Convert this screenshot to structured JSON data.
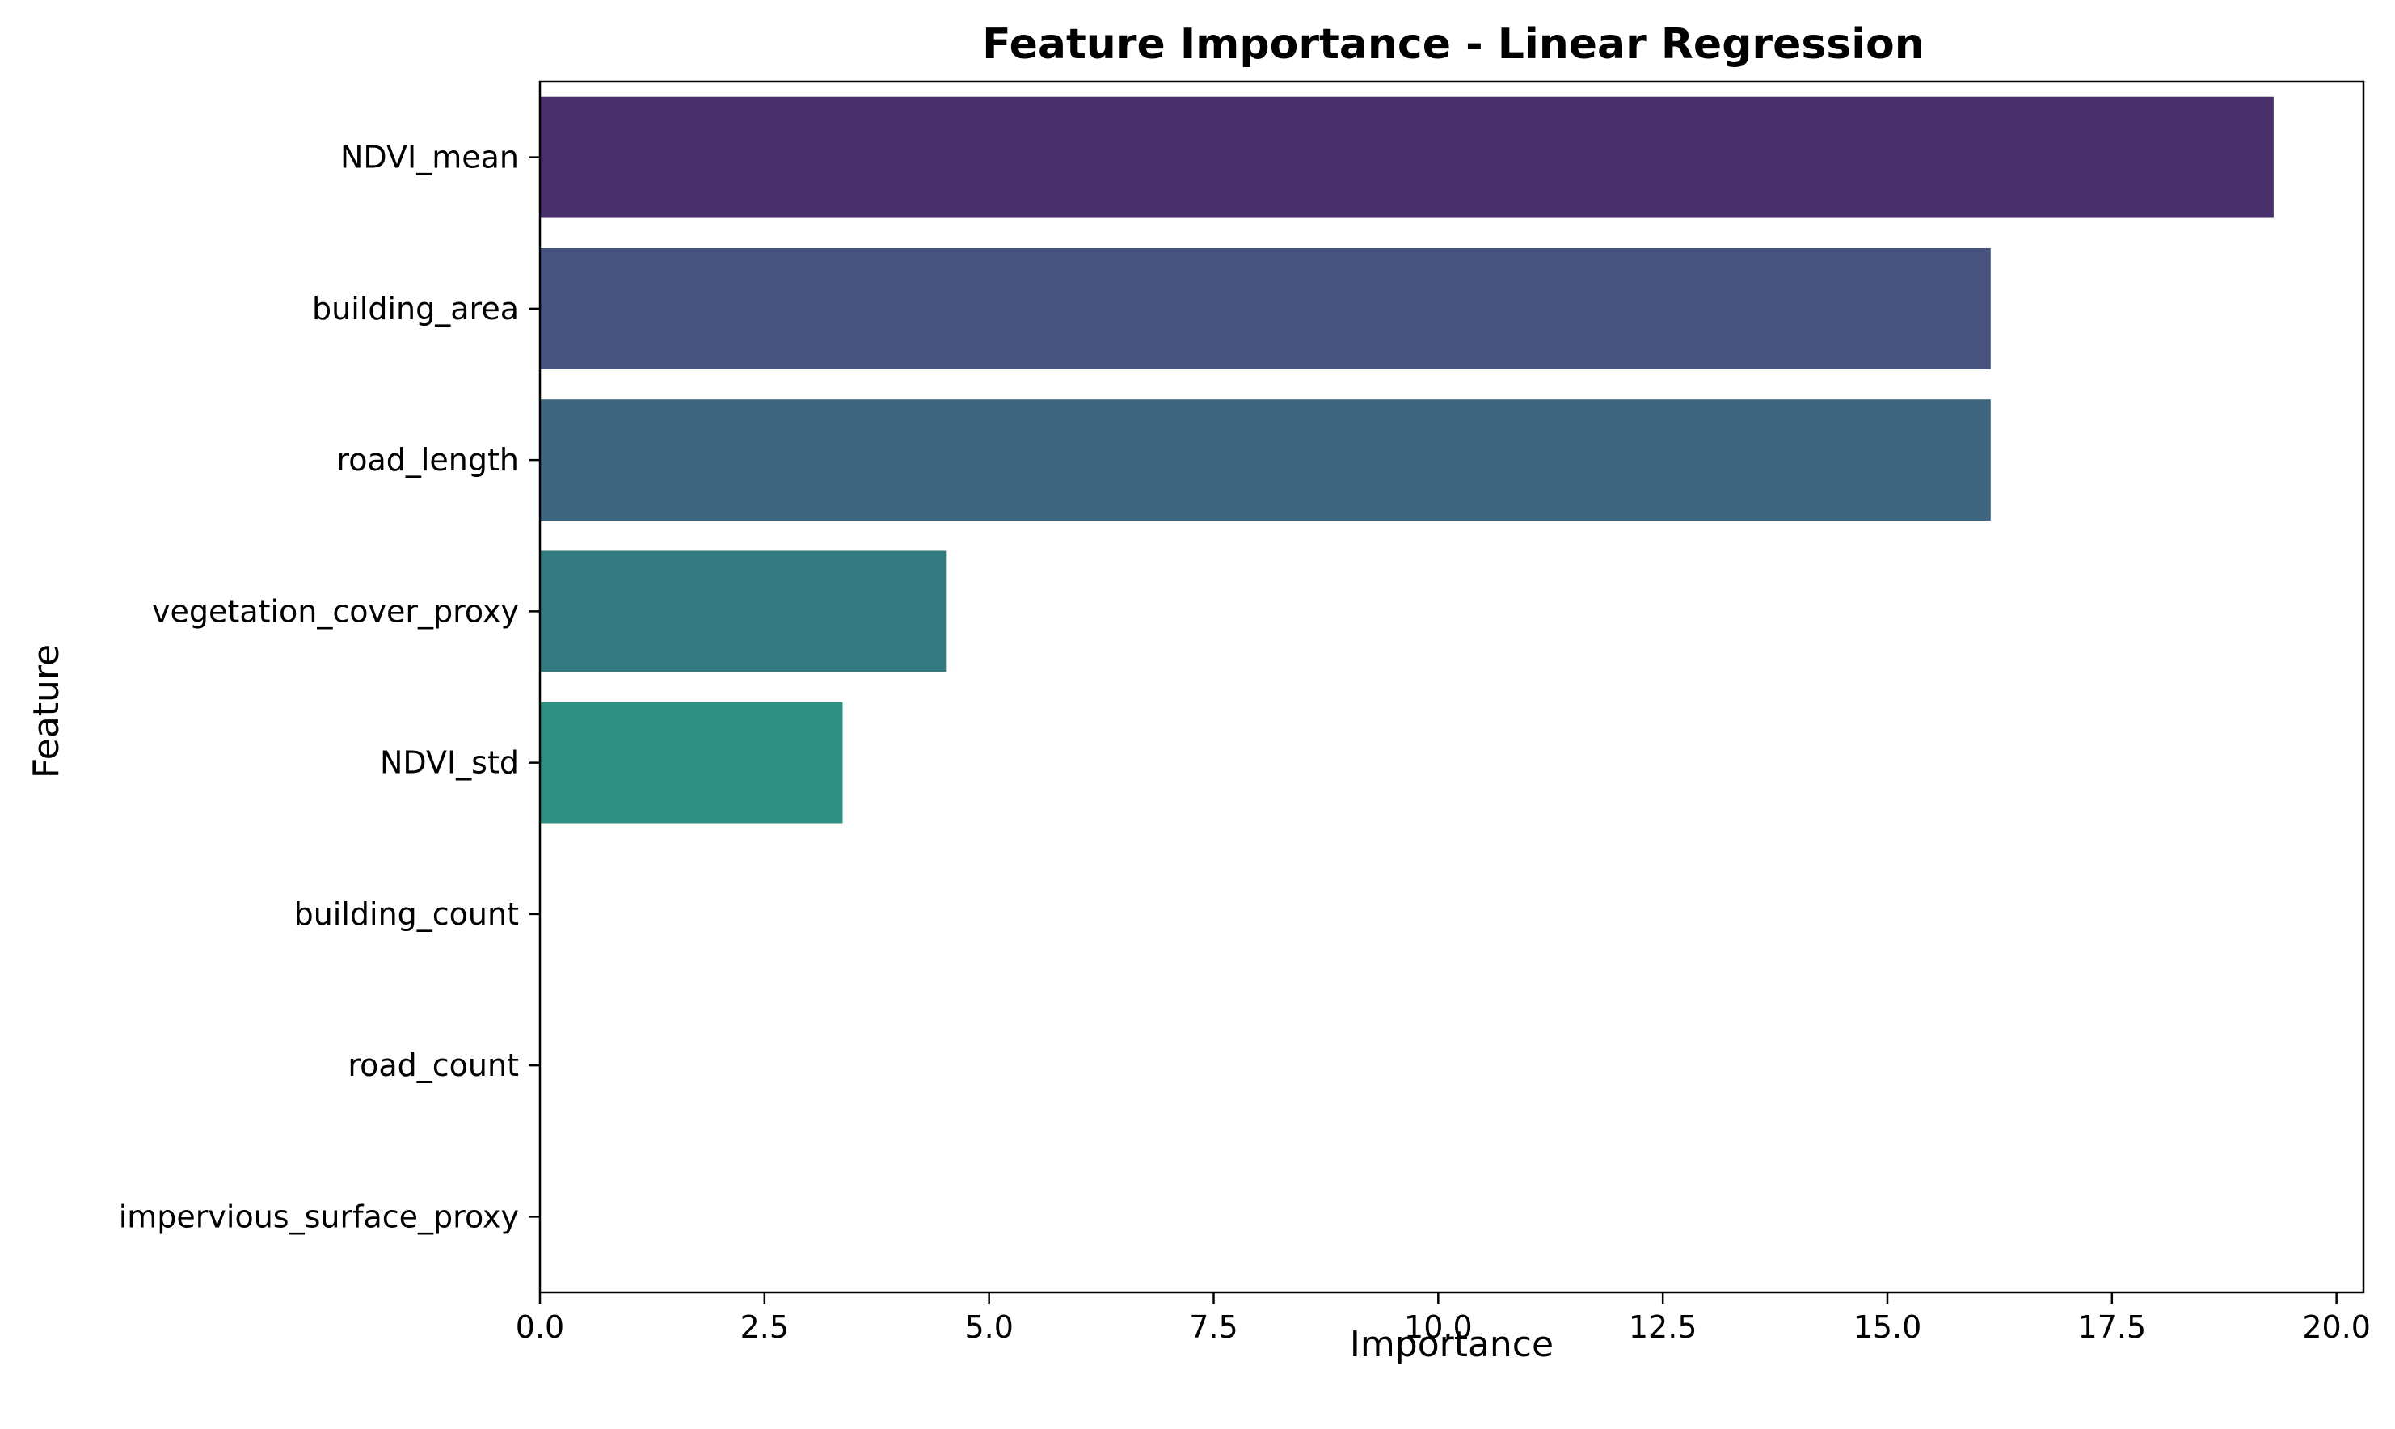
{
  "chart_data": {
    "type": "bar",
    "orientation": "horizontal",
    "title": "Feature Importance - Linear Regression",
    "xlabel": "Importance",
    "ylabel": "Feature",
    "xlim": [
      0,
      20.3
    ],
    "xticks": [
      "0.0",
      "2.5",
      "5.0",
      "7.5",
      "10.0",
      "12.5",
      "15.0",
      "17.5",
      "20.0"
    ],
    "xtick_values": [
      0,
      2.5,
      5,
      7.5,
      10,
      12.5,
      15,
      17.5,
      20
    ],
    "categories": [
      "NDVI_mean",
      "building_area",
      "road_length",
      "vegetation_cover_proxy",
      "NDVI_std",
      "building_count",
      "road_count",
      "impervious_surface_proxy"
    ],
    "values": [
      19.3,
      16.15,
      16.15,
      4.52,
      3.37,
      0.0,
      0.0,
      0.0
    ],
    "colors": [
      "#4a2f6d",
      "#48527f",
      "#3e6680",
      "#327a7f",
      "#2e9080",
      "#35a87a",
      "#5cbf64",
      "#9ad24c"
    ],
    "grid": false,
    "legend": "none"
  }
}
